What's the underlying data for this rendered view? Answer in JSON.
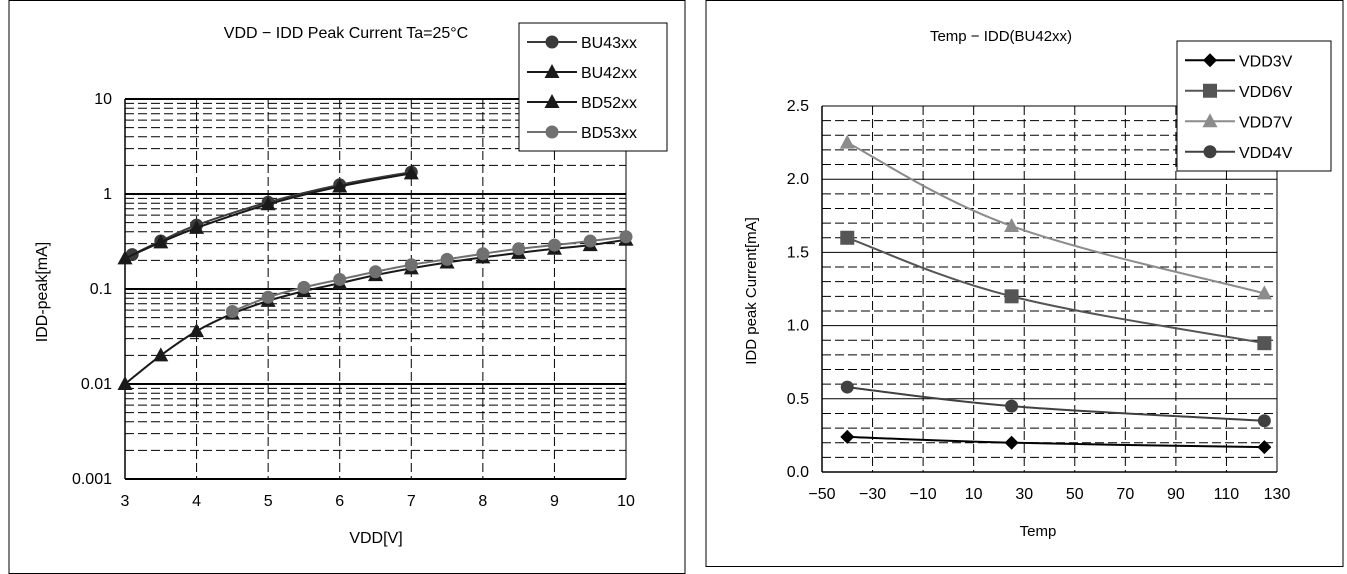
{
  "chart_data": [
    {
      "type": "line",
      "title": "VDD − IDD Peak Current Ta=25°C",
      "xlabel": "VDD[V]",
      "ylabel": "IDD-peak[mA]",
      "yscale": "log",
      "xlim": [
        3,
        10
      ],
      "ylim": [
        0.001,
        10
      ],
      "xticks": [
        "3",
        "4",
        "5",
        "6",
        "7",
        "8",
        "9",
        "10"
      ],
      "yticks": [
        "0.001",
        "0.01",
        "0.1",
        "1",
        "10"
      ],
      "grid": true,
      "legend_position": "top-right",
      "series": [
        {
          "name": "BU43xx",
          "marker": "circle",
          "color": "#3a3a3a",
          "x": [
            3.1,
            3.5,
            4,
            5,
            6,
            7
          ],
          "y": [
            0.23,
            0.32,
            0.47,
            0.82,
            1.25,
            1.7
          ]
        },
        {
          "name": "BU42xx",
          "marker": "triangle",
          "color": "#1a1a1a",
          "x": [
            3,
            3.5,
            4,
            5,
            6,
            7
          ],
          "y": [
            0.21,
            0.31,
            0.44,
            0.78,
            1.2,
            1.65
          ]
        },
        {
          "name": "BD52xx",
          "marker": "triangle",
          "color": "#1a1a1a",
          "x": [
            3,
            3.5,
            4,
            4.5,
            5,
            5.5,
            6,
            6.5,
            7,
            7.5,
            8,
            8.5,
            9,
            9.5,
            10
          ],
          "y": [
            0.01,
            0.02,
            0.036,
            0.055,
            0.075,
            0.095,
            0.115,
            0.14,
            0.165,
            0.19,
            0.215,
            0.24,
            0.265,
            0.29,
            0.33
          ]
        },
        {
          "name": "BD53xx",
          "marker": "circle",
          "color": "#707070",
          "x": [
            4.5,
            5,
            5.5,
            6,
            6.5,
            7,
            7.5,
            8,
            8.5,
            9,
            9.5,
            10
          ],
          "y": [
            0.058,
            0.082,
            0.104,
            0.126,
            0.152,
            0.18,
            0.205,
            0.235,
            0.265,
            0.29,
            0.32,
            0.355
          ]
        }
      ]
    },
    {
      "type": "line",
      "title": "Temp − IDD(BU42xx)",
      "xlabel": "Temp",
      "ylabel": "IDD peak Current[mA]",
      "xlim": [
        -50,
        130
      ],
      "ylim": [
        0,
        2.5
      ],
      "xticks": [
        "−50",
        "−30",
        "−10",
        "10",
        "30",
        "50",
        "70",
        "90",
        "110",
        "130"
      ],
      "yticks": [
        "0.0",
        "0.5",
        "1.0",
        "1.5",
        "2.0",
        "2.5"
      ],
      "grid": true,
      "legend_position": "top-right",
      "series": [
        {
          "name": "VDD3V",
          "marker": "diamond",
          "color": "#000000",
          "x": [
            -40,
            25,
            125
          ],
          "y": [
            0.24,
            0.2,
            0.17
          ]
        },
        {
          "name": "VDD6V",
          "marker": "square",
          "color": "#555555",
          "x": [
            -40,
            25,
            125
          ],
          "y": [
            1.6,
            1.2,
            0.88
          ]
        },
        {
          "name": "VDD7V",
          "marker": "triangle",
          "color": "#8c8c8c",
          "x": [
            -40,
            25,
            125
          ],
          "y": [
            2.25,
            1.68,
            1.22
          ]
        },
        {
          "name": "VDD4V",
          "marker": "circle",
          "color": "#404040",
          "x": [
            -40,
            25,
            125
          ],
          "y": [
            0.58,
            0.45,
            0.35
          ]
        }
      ]
    }
  ]
}
